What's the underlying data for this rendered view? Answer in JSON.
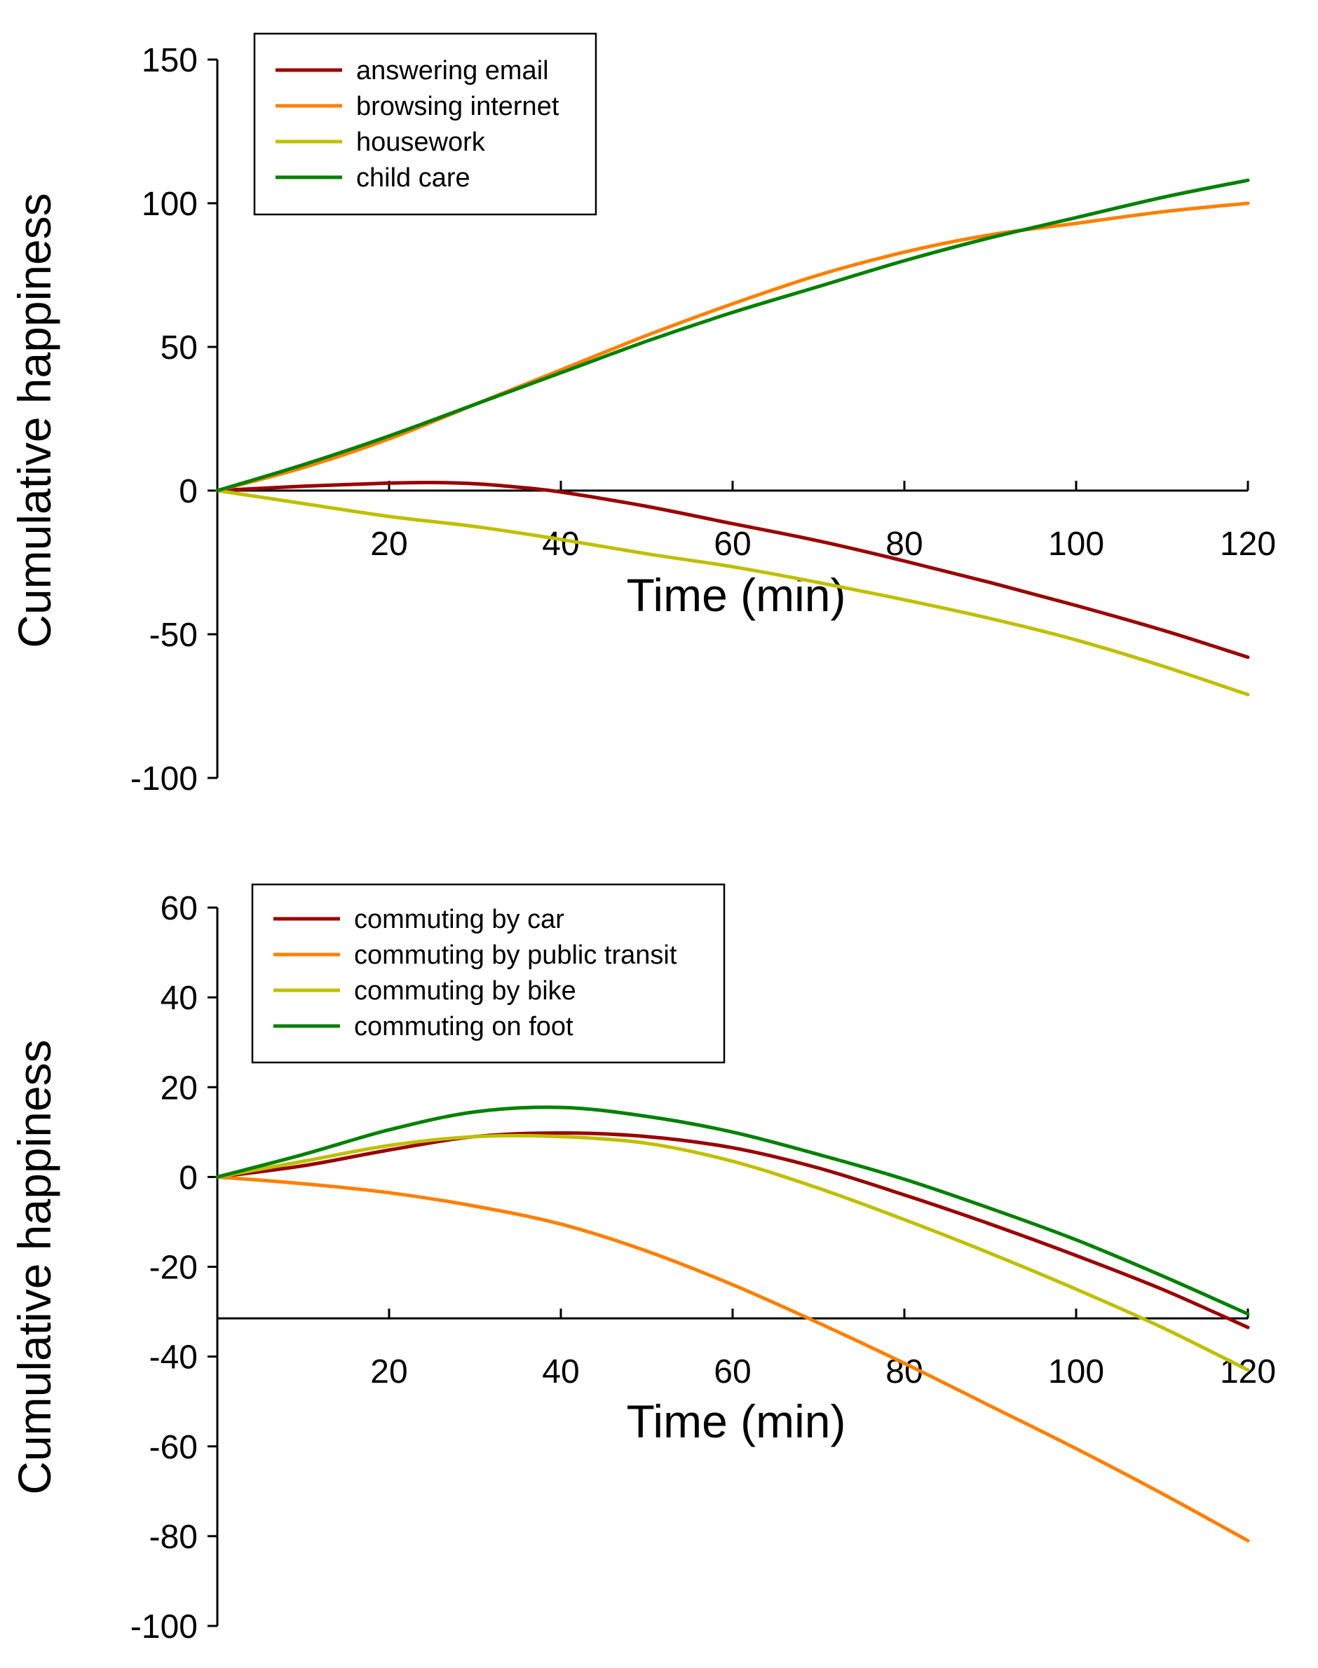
{
  "chart_data": [
    {
      "type": "line",
      "title": "",
      "xlabel": "Time (min)",
      "ylabel": "Cumulative happiness",
      "xlim": [
        0,
        120
      ],
      "ylim": [
        -100,
        150
      ],
      "xticks": [
        20,
        40,
        60,
        80,
        100,
        120
      ],
      "yticks": [
        -100,
        -50,
        0,
        50,
        100,
        150
      ],
      "grid": false,
      "legend_position": "top-left",
      "series": [
        {
          "name": "answering email",
          "color": "#990000",
          "x": [
            0,
            10,
            20,
            25,
            30,
            35,
            40,
            50,
            60,
            70,
            80,
            90,
            100,
            110,
            120
          ],
          "y": [
            0,
            1.5,
            2.6,
            2.8,
            2.4,
            1.2,
            -0.5,
            -5.5,
            -11.5,
            -17.5,
            -24.5,
            -32,
            -40,
            -48.5,
            -58
          ]
        },
        {
          "name": "browsing internet",
          "color": "#FF8000",
          "x": [
            0,
            10,
            20,
            30,
            40,
            50,
            60,
            70,
            80,
            90,
            100,
            110,
            120
          ],
          "y": [
            0,
            8,
            18,
            30,
            42,
            54,
            65,
            75,
            83,
            89,
            93,
            97,
            100
          ]
        },
        {
          "name": "housework",
          "color": "#BFBF00",
          "x": [
            0,
            10,
            20,
            30,
            40,
            50,
            60,
            70,
            80,
            90,
            100,
            110,
            120
          ],
          "y": [
            0,
            -4.5,
            -9,
            -12.5,
            -17,
            -22,
            -26.5,
            -32,
            -38,
            -44.5,
            -52,
            -61,
            -71
          ]
        },
        {
          "name": "child care",
          "color": "#008000",
          "x": [
            0,
            10,
            20,
            30,
            40,
            50,
            60,
            70,
            80,
            90,
            100,
            110,
            120
          ],
          "y": [
            0,
            9,
            19,
            30,
            41,
            52,
            62,
            71,
            80,
            88,
            95,
            102,
            108
          ]
        }
      ]
    },
    {
      "type": "line",
      "title": "",
      "xlabel": "Time (min)",
      "ylabel": "Cumulative happiness",
      "xlim": [
        0,
        120
      ],
      "ylim": [
        -100,
        60
      ],
      "xticks": [
        20,
        40,
        60,
        80,
        100,
        120
      ],
      "yticks": [
        -100,
        -80,
        -60,
        -40,
        -20,
        0,
        20,
        40,
        60
      ],
      "grid": false,
      "legend_position": "top-left",
      "series": [
        {
          "name": "commuting by car",
          "color": "#990000",
          "x": [
            0,
            10,
            20,
            30,
            40,
            50,
            60,
            70,
            80,
            90,
            100,
            110,
            120
          ],
          "y": [
            0,
            2.5,
            6,
            9,
            9.8,
            9,
            6.5,
            2,
            -4,
            -10.5,
            -17.5,
            -25,
            -33.5
          ]
        },
        {
          "name": "commuting by public transit",
          "color": "#FF8000",
          "x": [
            0,
            10,
            20,
            30,
            40,
            50,
            60,
            70,
            80,
            90,
            100,
            110,
            120
          ],
          "y": [
            0,
            -1.5,
            -3.5,
            -6.5,
            -10.5,
            -16.5,
            -24,
            -32.5,
            -41.5,
            -51,
            -60.5,
            -70.5,
            -81
          ]
        },
        {
          "name": "commuting by bike",
          "color": "#BFBF00",
          "x": [
            0,
            10,
            20,
            30,
            40,
            50,
            60,
            70,
            80,
            90,
            100,
            110,
            120
          ],
          "y": [
            0,
            3.5,
            7,
            9,
            9,
            7.5,
            3.5,
            -2.5,
            -9.5,
            -17,
            -25,
            -33.5,
            -43
          ]
        },
        {
          "name": "commuting on foot",
          "color": "#008000",
          "x": [
            0,
            10,
            20,
            30,
            40,
            50,
            60,
            70,
            80,
            90,
            100,
            110,
            120
          ],
          "y": [
            0,
            5,
            10.5,
            14.5,
            15.5,
            13.5,
            10,
            5,
            -0.5,
            -7,
            -14,
            -22,
            -30.5
          ]
        }
      ]
    }
  ]
}
